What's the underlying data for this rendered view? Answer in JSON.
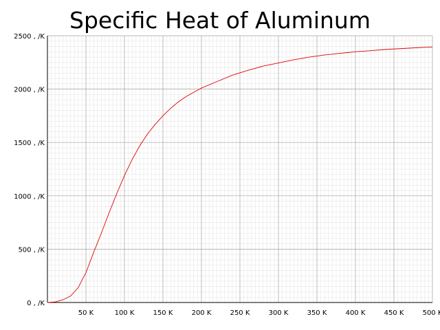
{
  "chart_data": {
    "type": "line",
    "title": "Specific Heat of Aluminum",
    "xlabel": "",
    "ylabel": "",
    "x_unit": "K",
    "y_unit": ", /K",
    "xlim": [
      0,
      500
    ],
    "ylim": [
      0,
      2500
    ],
    "x_ticks": [
      50,
      100,
      150,
      200,
      250,
      300,
      350,
      400,
      450,
      500
    ],
    "y_ticks": [
      0,
      500,
      1000,
      1500,
      2000,
      2500
    ],
    "grid": true,
    "legend": "none",
    "series": [
      {
        "color": "#e00000",
        "x": [
          0,
          10,
          20,
          30,
          40,
          50,
          60,
          70,
          80,
          90,
          100,
          110,
          120,
          130,
          140,
          150,
          160,
          170,
          180,
          190,
          200,
          220,
          240,
          260,
          280,
          300,
          320,
          340,
          360,
          380,
          400,
          420,
          440,
          460,
          480,
          500
        ],
        "y": [
          0,
          5,
          25,
          60,
          140,
          280,
          470,
          650,
          840,
          1020,
          1190,
          1340,
          1470,
          1580,
          1670,
          1750,
          1820,
          1880,
          1930,
          1970,
          2010,
          2070,
          2130,
          2175,
          2215,
          2245,
          2275,
          2300,
          2320,
          2335,
          2350,
          2360,
          2372,
          2380,
          2388,
          2395
        ]
      }
    ]
  }
}
